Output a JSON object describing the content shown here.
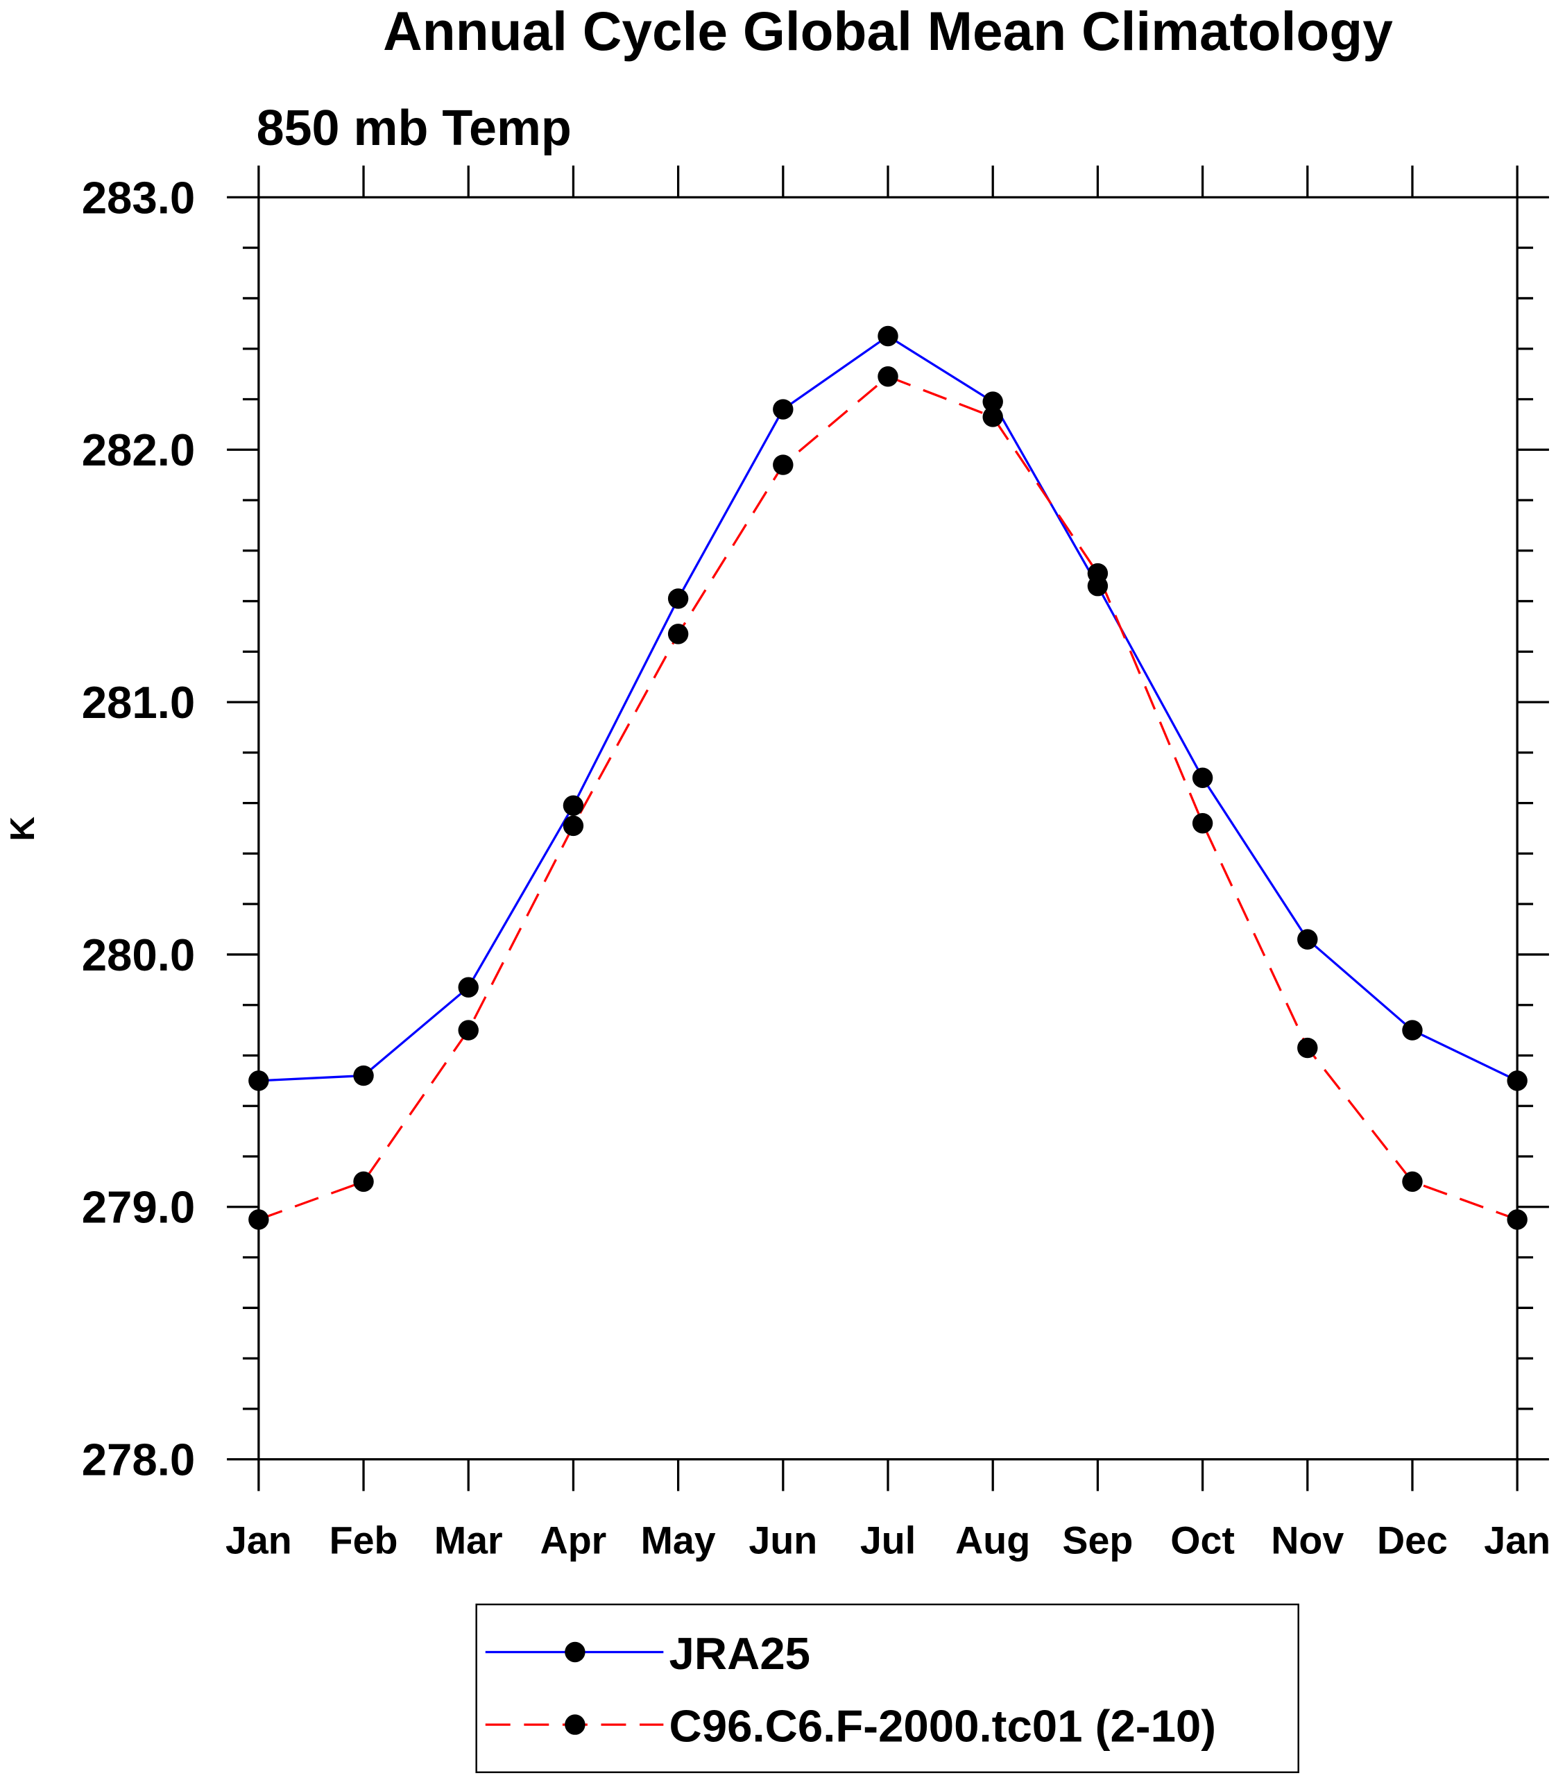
{
  "chart_data": {
    "type": "line",
    "title": "Annual Cycle Global Mean Climatology",
    "subtitle": "850 mb Temp",
    "xlabel": "",
    "ylabel": "K",
    "ylim": [
      278.0,
      283.0
    ],
    "yticks": [
      "278.0",
      "279.0",
      "280.0",
      "281.0",
      "282.0",
      "283.0"
    ],
    "categories": [
      "Jan",
      "Feb",
      "Mar",
      "Apr",
      "May",
      "Jun",
      "Jul",
      "Aug",
      "Sep",
      "Oct",
      "Nov",
      "Dec",
      "Jan"
    ],
    "grid": false,
    "legend_position": "bottom",
    "series": [
      {
        "name": "JRA25",
        "color": "#0000ff",
        "dash": "solid",
        "values": [
          279.5,
          279.52,
          279.87,
          280.59,
          281.41,
          282.16,
          282.45,
          282.19,
          281.46,
          280.7,
          280.06,
          279.7,
          279.5
        ]
      },
      {
        "name": "C96.C6.F-2000.tc01 (2-10)",
        "color": "#ff0000",
        "dash": "dashed",
        "values": [
          278.95,
          279.1,
          279.7,
          280.51,
          281.27,
          281.94,
          282.29,
          282.13,
          281.51,
          280.52,
          279.63,
          279.1,
          278.95
        ]
      }
    ]
  }
}
